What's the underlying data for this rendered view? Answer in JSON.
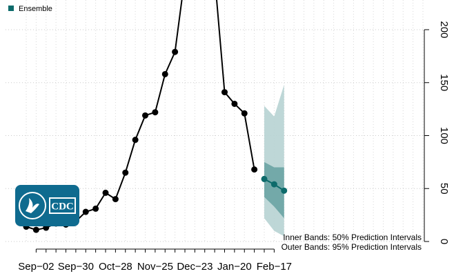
{
  "chart_data": {
    "type": "line",
    "title": "",
    "xlabel": "",
    "ylabel": "",
    "ylim": [
      0,
      230
    ],
    "grid": true,
    "legend_placement": "top-left",
    "x_ticks": [
      "Sep−02",
      "Sep−30",
      "Oct−28",
      "Nov−25",
      "Dec−23",
      "Jan−20",
      "Feb−17"
    ],
    "y_ticks": [
      0,
      50,
      100,
      150,
      200
    ],
    "observed": {
      "color": "#000000",
      "x": [
        "2023-08-26",
        "2023-09-02",
        "2023-09-09",
        "2023-09-16",
        "2023-09-23",
        "2023-09-30",
        "2023-10-07",
        "2023-10-14",
        "2023-10-21",
        "2023-10-28",
        "2023-11-04",
        "2023-11-11",
        "2023-11-18",
        "2023-11-25",
        "2023-12-02",
        "2023-12-09",
        "2023-12-16",
        "2023-12-23",
        "2023-12-30",
        "2024-01-06",
        "2024-01-13",
        "2024-01-20",
        "2024-01-27",
        "2024-02-03"
      ],
      "y": [
        14,
        11,
        13,
        17,
        16,
        19,
        28,
        31,
        46,
        40,
        65,
        96,
        119,
        122,
        158,
        179,
        250,
        300,
        300,
        250,
        141,
        130,
        121,
        68
      ]
    },
    "series": [
      {
        "name": "Ensemble",
        "color": "#0d6b6b",
        "band_color_95": "#b7d3d3",
        "band_color_50": "#6fa6a6",
        "x": [
          "2024-02-10",
          "2024-02-17",
          "2024-02-24"
        ],
        "median": [
          59,
          54,
          48
        ],
        "lower_50": [
          42,
          33,
          22
        ],
        "upper_50": [
          75,
          70,
          70
        ],
        "lower_95": [
          22,
          10,
          5
        ],
        "upper_95": [
          128,
          118,
          148
        ]
      }
    ],
    "annotations": [
      "Inner Bands: 50% Prediction Intervals",
      "Outer Bands: 95% Prediction Intervals"
    ]
  },
  "logo": {
    "name": "cdc-logo",
    "text": "CDC",
    "background": "#0f6b8f"
  }
}
